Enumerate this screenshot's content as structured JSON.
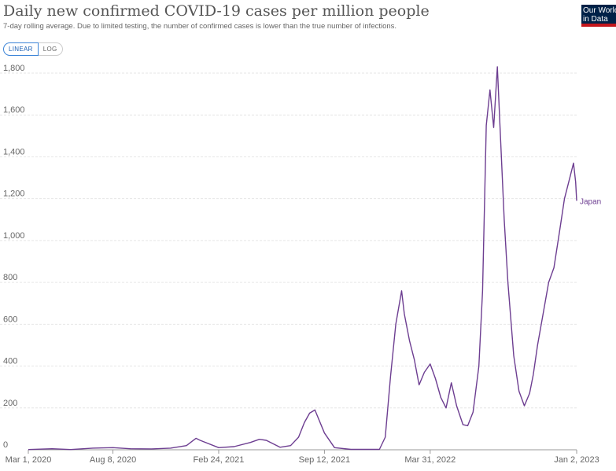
{
  "header": {
    "title": "Daily new confirmed COVID-19 cases per million people",
    "subtitle": "7-day rolling average. Due to limited testing, the number of confirmed cases is lower than the true number of infections.",
    "logo_line1": "Our World",
    "logo_line2": "in Data"
  },
  "controls": {
    "linear_label": "LINEAR",
    "log_label": "LOG",
    "active": "linear"
  },
  "colors": {
    "series": "#6d3e91",
    "grid": "#e6e6e6",
    "axis": "#999999"
  },
  "chart_data": {
    "type": "line",
    "title": "Daily new confirmed COVID-19 cases per million people",
    "subtitle": "7-day rolling average. Due to limited testing, the number of confirmed cases is lower than the true number of infections.",
    "ylim": [
      0,
      1800
    ],
    "yticks": [
      0,
      200,
      400,
      600,
      800,
      1000,
      1200,
      1400,
      1600,
      1800
    ],
    "ytick_labels": [
      "0",
      "200",
      "400",
      "600",
      "800",
      "1,000",
      "1,200",
      "1,400",
      "1,600",
      "1,800"
    ],
    "xlim": [
      "2020-03-01",
      "2023-01-02"
    ],
    "xticks": [
      "2020-03-01",
      "2020-08-08",
      "2021-02-24",
      "2021-09-12",
      "2022-03-31",
      "2023-01-02"
    ],
    "xtick_labels": [
      "Mar 1, 2020",
      "Aug 8, 2020",
      "Feb 24, 2021",
      "Sep 12, 2021",
      "Mar 31, 2022",
      "Jan 2, 2023"
    ],
    "grid": true,
    "legend": "end-of-line label",
    "series": [
      {
        "name": "Japan",
        "x": [
          "2020-03-01",
          "2020-04-15",
          "2020-05-20",
          "2020-07-01",
          "2020-08-08",
          "2020-09-10",
          "2020-10-20",
          "2020-11-25",
          "2020-12-25",
          "2021-01-12",
          "2021-01-20",
          "2021-02-24",
          "2021-03-25",
          "2021-04-25",
          "2021-05-12",
          "2021-05-25",
          "2021-06-20",
          "2021-07-10",
          "2021-07-25",
          "2021-08-05",
          "2021-08-15",
          "2021-08-25",
          "2021-09-12",
          "2021-10-01",
          "2021-11-01",
          "2021-12-25",
          "2022-01-05",
          "2022-01-15",
          "2022-01-25",
          "2022-02-05",
          "2022-02-10",
          "2022-02-20",
          "2022-03-01",
          "2022-03-10",
          "2022-03-20",
          "2022-03-31",
          "2022-04-10",
          "2022-04-20",
          "2022-04-30",
          "2022-05-10",
          "2022-05-20",
          "2022-06-01",
          "2022-06-10",
          "2022-06-20",
          "2022-07-01",
          "2022-07-08",
          "2022-07-15",
          "2022-07-22",
          "2022-07-29",
          "2022-08-05",
          "2022-08-10",
          "2022-08-18",
          "2022-08-25",
          "2022-09-05",
          "2022-09-15",
          "2022-09-25",
          "2022-10-05",
          "2022-10-12",
          "2022-10-20",
          "2022-11-01",
          "2022-11-10",
          "2022-11-20",
          "2022-12-01",
          "2022-12-10",
          "2022-12-20",
          "2022-12-27",
          "2022-12-31",
          "2023-01-02"
        ],
        "values": [
          1,
          5,
          1,
          8,
          10,
          5,
          4,
          8,
          20,
          55,
          45,
          10,
          15,
          35,
          50,
          45,
          12,
          20,
          60,
          130,
          175,
          190,
          80,
          10,
          2,
          2,
          60,
          350,
          600,
          760,
          650,
          520,
          430,
          310,
          370,
          410,
          340,
          250,
          200,
          320,
          210,
          120,
          115,
          180,
          400,
          760,
          1550,
          1720,
          1540,
          1830,
          1550,
          1100,
          800,
          450,
          280,
          210,
          270,
          360,
          500,
          670,
          800,
          870,
          1050,
          1200,
          1300,
          1370,
          1280,
          1190
        ]
      }
    ]
  }
}
